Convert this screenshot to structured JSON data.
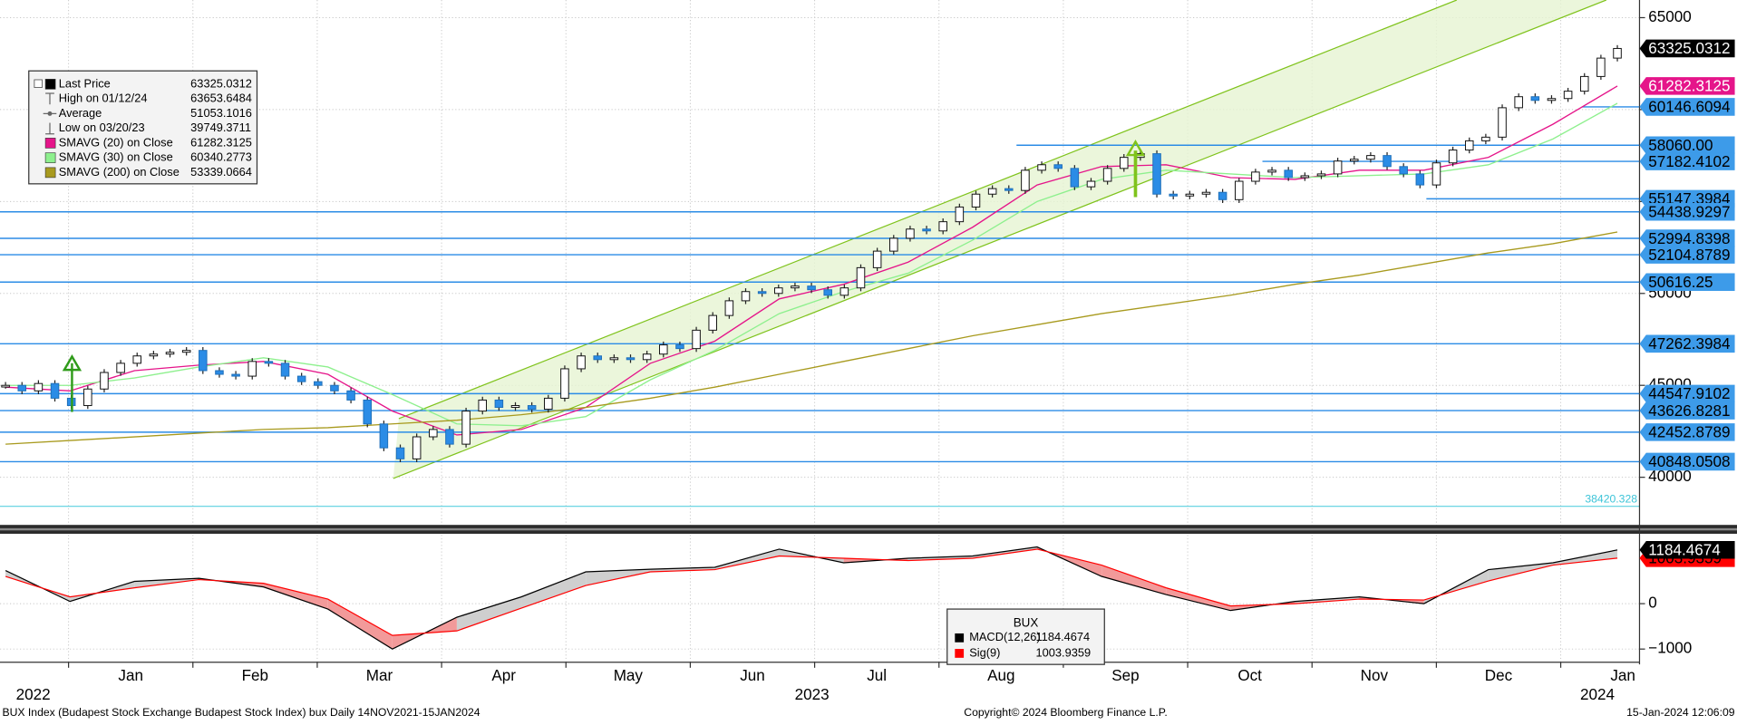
{
  "chart_data": [
    {
      "type": "candlestick",
      "ylim": [
        37650,
        65960
      ],
      "yticks": [
        40000,
        45000,
        50000,
        55000,
        60000,
        65000
      ],
      "grid": true,
      "series": [
        {
          "name": "Last Price",
          "color": "#000000",
          "values": [
            45000,
            44700,
            45100,
            44300,
            43900,
            44800,
            45700,
            46200,
            46600,
            46700,
            46800,
            46900,
            45800,
            45600,
            45500,
            46300,
            46200,
            45500,
            45200,
            45000,
            44700,
            44200,
            42900,
            41600,
            41000,
            42200,
            42600,
            41800,
            43600,
            44200,
            43800,
            43900,
            43700,
            44300,
            45900,
            46600,
            46400,
            46500,
            46400,
            46700,
            47200,
            47000,
            48000,
            48800,
            49600,
            50100,
            50000,
            50300,
            50400,
            50200,
            49900,
            50300,
            51400,
            52300,
            53000,
            53500,
            53400,
            53900,
            54700,
            55400,
            55700,
            55600,
            56700,
            57000,
            56800,
            55800,
            56100,
            56800,
            57400,
            57600,
            55400,
            55300,
            55400,
            55500,
            55100,
            56100,
            56600,
            56700,
            56300,
            56400,
            56500,
            57200,
            57300,
            57500,
            56900,
            56500,
            55900,
            57100,
            57800,
            58300,
            58500,
            60100,
            60700,
            60500,
            60600,
            61000,
            61800,
            62800,
            63325.0312
          ]
        },
        {
          "name": "SMAVG (20)  on Close",
          "color": "#e5158a",
          "values": [
            44900,
            44700,
            45800,
            46100,
            46300,
            45600,
            43600,
            42300,
            42600,
            43800,
            46200,
            47400,
            49700,
            50500,
            51700,
            53600,
            55900,
            56900,
            57000,
            56300,
            56200,
            56700,
            56700,
            57400,
            59200,
            61282.3125
          ]
        },
        {
          "name": "SMAVG (30)  on Close",
          "color": "#8ef08e",
          "values": [
            45000,
            45000,
            45400,
            46000,
            46500,
            46000,
            44500,
            42900,
            42800,
            43300,
            45300,
            46900,
            48900,
            50100,
            51100,
            52900,
            55000,
            56200,
            56700,
            56500,
            56300,
            56400,
            56500,
            57000,
            58400,
            60340.2773
          ]
        },
        {
          "name": "SMAVG (200)  on Close",
          "color": "#a89a1e",
          "values": [
            41800,
            42000,
            42200,
            42400,
            42600,
            42700,
            42900,
            43100,
            43400,
            43800,
            44300,
            44900,
            45600,
            46300,
            47000,
            47700,
            48300,
            48900,
            49400,
            49900,
            50500,
            51000,
            51600,
            52200,
            52700,
            53339.0664
          ]
        }
      ],
      "legend_stats": [
        {
          "label": "High on 01/12/24",
          "value": 63653.6484
        },
        {
          "label": "Average",
          "value": 51053.1016
        },
        {
          "label": "Low on 03/20/23",
          "value": 39749.3711
        }
      ],
      "levels": {
        "color": "#2b8ce6",
        "values": [
          60146.6094,
          58060,
          57182.4102,
          55147.3984,
          54438.9297,
          52994.8398,
          52104.8789,
          50616.25,
          47262.3984,
          44547.9102,
          43626.8281,
          42452.8789,
          40848.0508
        ],
        "value_labels": [
          "60146.6094",
          "58060.00",
          "57182.4102",
          "55147.3984",
          "54438.9297",
          "52994.8398",
          "52104.8789",
          "50616.25",
          "47262.3984",
          "44547.9102",
          "43626.8281",
          "42452.8789",
          "40848.0508"
        ]
      },
      "cyan_level": 38420.328
    },
    {
      "type": "line",
      "title": "BUX",
      "ylim": [
        -1290,
        1540
      ],
      "yticks": [
        0,
        {
          "value": -1000,
          "label": "−1000"
        }
      ],
      "grid": true,
      "series": [
        {
          "name": "MACD(12,26)",
          "color": "#000000",
          "values": [
            730,
            50,
            490,
            560,
            370,
            -120,
            -1000,
            -300,
            150,
            700,
            760,
            800,
            1200,
            900,
            1000,
            1050,
            1250,
            600,
            200,
            -150,
            50,
            150,
            0,
            750,
            900,
            1184.4674
          ]
        },
        {
          "name": "Sig(9)",
          "color": "#ff0000",
          "values": [
            600,
            150,
            350,
            530,
            450,
            100,
            -700,
            -600,
            -100,
            400,
            700,
            750,
            1050,
            1000,
            950,
            1000,
            1200,
            850,
            350,
            -50,
            0,
            100,
            80,
            500,
            850,
            1003.9359
          ]
        }
      ],
      "x_tick_labels": [
        "Jan",
        "Feb",
        "Mar",
        "Apr",
        "May",
        "Jun",
        "Jul",
        "Aug",
        "Sep",
        "Oct",
        "Nov",
        "Dec",
        "Jan"
      ],
      "year_labels": [
        "2022",
        "2023",
        "2024"
      ]
    }
  ],
  "footer": {
    "left": "BUX Index (Budapest Stock Exchange Budapest Stock Index) bux  Daily 14NOV2021-15JAN2024",
    "center": "Copyright© 2024 Bloomberg Finance L.P.",
    "right": "15-Jan-2024 12:06:09"
  }
}
